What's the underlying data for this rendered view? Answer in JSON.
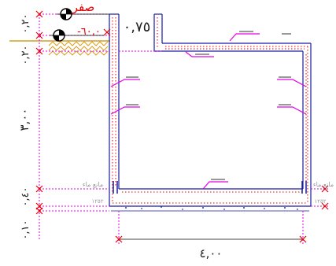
{
  "drawing": {
    "levels": {
      "zero": "صفر",
      "ground": "-٦٠,٠"
    },
    "wall_top_elevation": "٠,٧٥",
    "dimensions": {
      "left_top": "٠,٢٠",
      "left_second": "٠,٢٠",
      "left_main": "٣,٠٠",
      "left_base": "٠,٤٠",
      "left_bottom": "٠,١٠",
      "bottom_width": "٤,٠٠"
    },
    "annotations": {
      "water_stop_left": "مانع ماء",
      "water_stop_right": "مانع ماء",
      "tag_left": "١٢٥٢",
      "tag_right": "١٢٥٢"
    },
    "colors": {
      "outline": "#1a1aa0",
      "dimension": "#e600e6",
      "markers": "#e60000",
      "rebar": "#e60000",
      "level_text": "#e60000",
      "soil": "#d4a020",
      "fill_dots": "#1a3cc8"
    }
  }
}
